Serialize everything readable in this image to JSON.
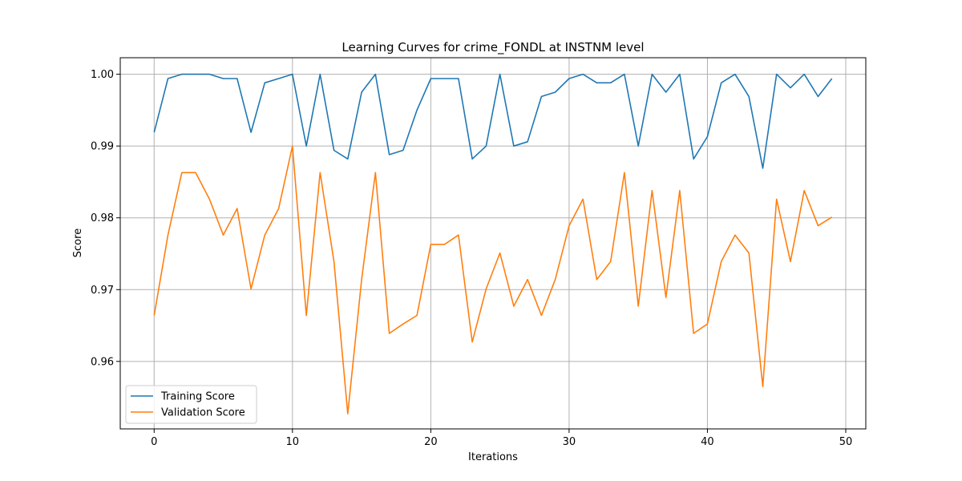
{
  "chart_data": {
    "type": "line",
    "title": "Learning Curves for crime_FONDL at INSTNM level",
    "xlabel": "Iterations",
    "ylabel": "Score",
    "xlim": [
      -2.45,
      51.45
    ],
    "ylim": [
      0.9506,
      1.0023
    ],
    "xticks": [
      0,
      10,
      20,
      30,
      40,
      50
    ],
    "xtick_labels": [
      "0",
      "10",
      "20",
      "30",
      "40",
      "50"
    ],
    "yticks": [
      0.96,
      0.97,
      0.98,
      0.99,
      1.0
    ],
    "ytick_labels": [
      "0.96",
      "0.97",
      "0.98",
      "0.99",
      "1.00"
    ],
    "grid": true,
    "legend_position": "lower-left",
    "x": [
      0,
      1,
      2,
      3,
      4,
      5,
      6,
      7,
      8,
      9,
      10,
      11,
      12,
      13,
      14,
      15,
      16,
      17,
      18,
      19,
      20,
      21,
      22,
      23,
      24,
      25,
      26,
      27,
      28,
      29,
      30,
      31,
      32,
      33,
      34,
      35,
      36,
      37,
      38,
      39,
      40,
      41,
      42,
      43,
      44,
      45,
      46,
      47,
      48,
      49
    ],
    "series": [
      {
        "name": "Training Score",
        "color": "#1f77b4",
        "values": [
          0.9919,
          0.9994,
          1.0,
          1.0,
          1.0,
          0.9994,
          0.9994,
          0.9919,
          0.9988,
          0.9994,
          1.0,
          0.99,
          1.0,
          0.9894,
          0.9882,
          0.9975,
          1.0,
          0.9888,
          0.9894,
          0.995,
          0.9994,
          0.9994,
          0.9994,
          0.9882,
          0.99,
          1.0,
          0.99,
          0.9906,
          0.9969,
          0.9975,
          0.9994,
          1.0,
          0.9988,
          0.9988,
          1.0,
          0.99,
          1.0,
          0.9975,
          1.0,
          0.9882,
          0.9913,
          0.9988,
          1.0,
          0.9969,
          0.9869,
          1.0,
          0.9981,
          1.0,
          0.9969,
          0.9994
        ]
      },
      {
        "name": "Validation Score",
        "color": "#ff7f0e",
        "values": [
          0.9664,
          0.9776,
          0.9863,
          0.9863,
          0.9826,
          0.9776,
          0.9813,
          0.9701,
          0.9776,
          0.9813,
          0.99,
          0.9664,
          0.9863,
          0.9739,
          0.9527,
          0.9714,
          0.9863,
          0.9639,
          0.9652,
          0.9664,
          0.9763,
          0.9763,
          0.9776,
          0.9627,
          0.9701,
          0.9751,
          0.9677,
          0.9714,
          0.9664,
          0.9714,
          0.9789,
          0.9826,
          0.9714,
          0.9739,
          0.9863,
          0.9677,
          0.9838,
          0.9689,
          0.9838,
          0.9639,
          0.9652,
          0.9739,
          0.9776,
          0.9751,
          0.9565,
          0.9826,
          0.9739,
          0.9838,
          0.9789,
          0.9801
        ]
      }
    ]
  }
}
